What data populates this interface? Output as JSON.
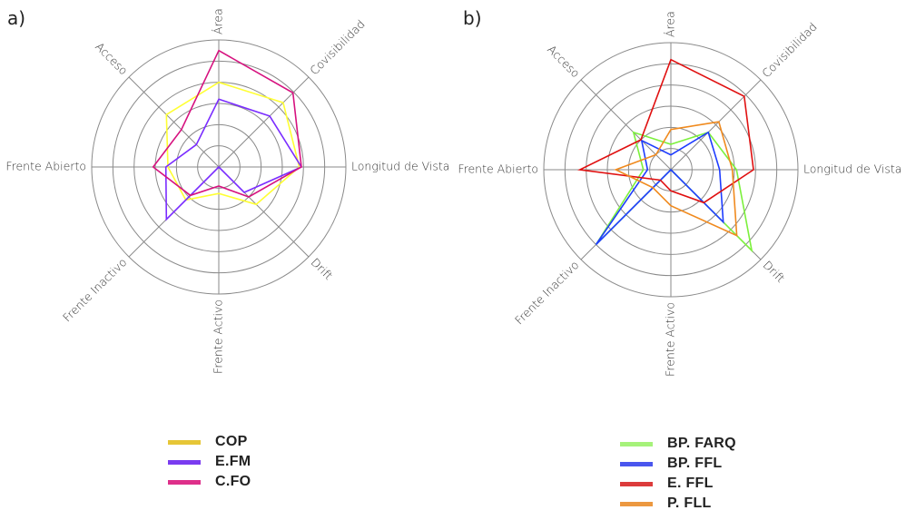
{
  "chart_data": [
    {
      "type": "radar",
      "panel_label": "a)",
      "axes": [
        "Área",
        "Covisibilidad",
        "Longitud de Vista",
        "Drift",
        "Frente Activo",
        "Frente Inactivo",
        "Frente Abierto",
        "Acceso"
      ],
      "rlim": [
        0,
        6
      ],
      "rings": 6,
      "grid": true,
      "legend_position": "bottom",
      "series": [
        {
          "name": "COP",
          "line_color": "#ffff33",
          "legend_color": "#e6c637",
          "values": [
            4.0,
            4.3,
            3.8,
            2.5,
            1.25,
            2.2,
            2.4,
            3.5
          ]
        },
        {
          "name": "E.FM",
          "line_color": "#7a2cff",
          "legend_color": "#7a3cf0",
          "values": [
            3.2,
            3.4,
            3.9,
            1.7,
            0.0,
            3.5,
            2.5,
            1.5
          ]
        },
        {
          "name": "C.FO",
          "line_color": "#d6127f",
          "legend_color": "#de2f8a",
          "values": [
            5.5,
            4.95,
            3.9,
            2.0,
            0.9,
            1.9,
            3.1,
            2.5
          ]
        }
      ]
    },
    {
      "type": "radar",
      "panel_label": "b)",
      "axes": [
        "Área",
        "Covisibilidad",
        "Longitud de Vista",
        "Drift",
        "Frente Activo",
        "Frente Inactivo",
        "Frente Abierto",
        "Acceso"
      ],
      "rlim": [
        0,
        6
      ],
      "rings": 6,
      "grid": true,
      "legend_position": "bottom",
      "series": [
        {
          "name": "BP. FARQ",
          "line_color": "#7cf03c",
          "legend_color": "#a6f27a",
          "values": [
            1.2,
            2.5,
            3.1,
            5.4,
            0.0,
            5.0,
            1.3,
            2.5
          ]
        },
        {
          "name": "BP. FFL",
          "line_color": "#1e3cff",
          "legend_color": "#4a56ee",
          "values": [
            0.7,
            2.5,
            2.3,
            3.5,
            0.0,
            5.0,
            1.1,
            1.95
          ]
        },
        {
          "name": "E. FFL",
          "line_color": "#e01010",
          "legend_color": "#dc3b3b",
          "values": [
            5.2,
            4.9,
            3.9,
            2.2,
            1.0,
            0.7,
            4.3,
            2.0
          ]
        },
        {
          "name": "P. FLL",
          "line_color": "#f08a1e",
          "legend_color": "#ec9840",
          "values": [
            1.9,
            3.2,
            2.9,
            4.4,
            1.7,
            1.2,
            2.6,
            1.0
          ]
        }
      ]
    }
  ]
}
